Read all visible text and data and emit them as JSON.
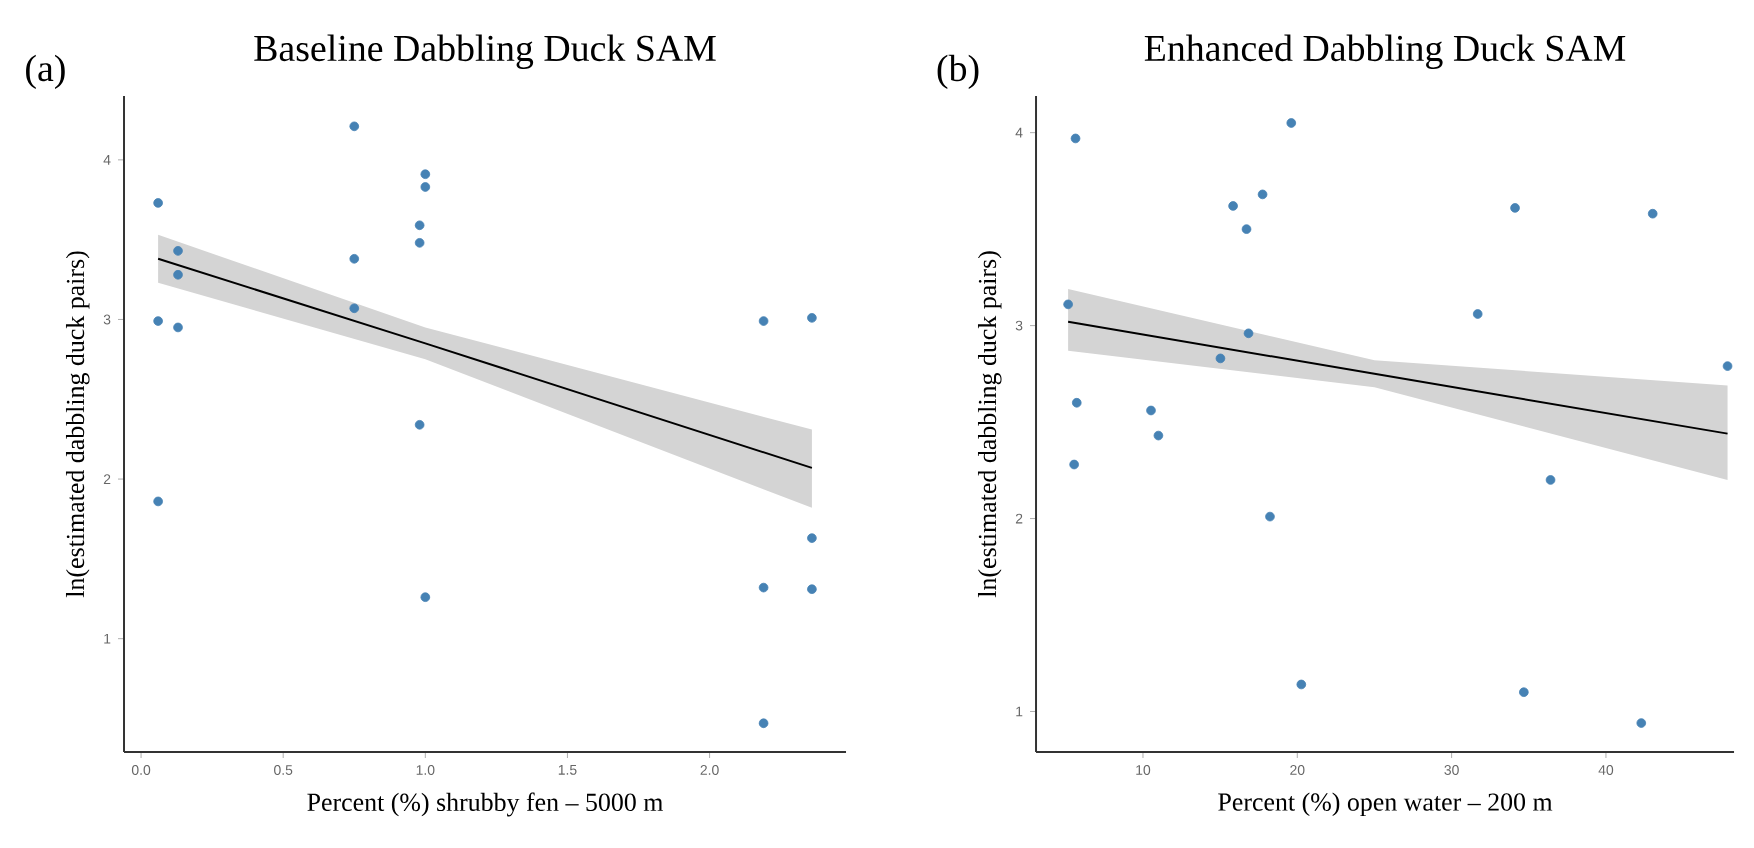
{
  "chart_data": [
    {
      "type": "scatter",
      "title": "Baseline Dabbling Duck SAM",
      "xlabel": "Percent (%) shrubby fen – 5000 m",
      "ylabel": "ln(estimated dabbling duck pairs)",
      "annotations": [
        "(a)"
      ],
      "xlim": [
        -0.06,
        2.48
      ],
      "ylim": [
        0.29,
        4.4
      ],
      "xticks": [
        {
          "value": 0,
          "label": "0.0"
        },
        0.5,
        {
          "value": 1,
          "label": "1.0"
        },
        1.5,
        {
          "value": 2,
          "label": "2.0"
        }
      ],
      "yticks": [
        1,
        2,
        3,
        4
      ],
      "series": [
        {
          "marker": "circle",
          "color": "#4682b4",
          "x": [
            0.06,
            0.06,
            0.06,
            0.13,
            0.13,
            0.13,
            0.75,
            0.75,
            0.75,
            0.98,
            0.98,
            0.98,
            1.0,
            1.0,
            1.0,
            2.19,
            2.19,
            2.19,
            2.36,
            2.36,
            2.36
          ],
          "values": [
            3.73,
            2.99,
            1.86,
            3.43,
            3.28,
            2.95,
            4.21,
            3.38,
            3.07,
            3.59,
            3.48,
            2.34,
            3.91,
            3.83,
            1.26,
            2.99,
            1.32,
            0.47,
            3.01,
            1.63,
            1.31
          ]
        },
        {
          "type": "line",
          "color": "#000000",
          "marker": "none",
          "x": [
            0.06,
            1.0,
            2.36
          ],
          "values": [
            3.38,
            2.85,
            2.07
          ],
          "lower": [
            3.23,
            2.75,
            1.82
          ],
          "upper": [
            3.53,
            2.95,
            2.31
          ]
        }
      ]
    },
    {
      "type": "scatter",
      "title": "Enhanced Dabbling Duck SAM",
      "xlabel": "Percent (%) open water – 200 m",
      "ylabel": "ln(estimated dabbling duck pairs)",
      "annotations": [
        "(b)"
      ],
      "xlim": [
        3.07,
        48.3
      ],
      "ylim": [
        0.79,
        4.19
      ],
      "xticks": [
        10,
        20,
        30,
        40
      ],
      "yticks": [
        1,
        2,
        3,
        4
      ],
      "series": [
        {
          "marker": "circle",
          "color": "#4682b4",
          "x": [
            5.15,
            5.63,
            5.71,
            5.54,
            10.52,
            11.0,
            15.02,
            15.84,
            16.71,
            16.84,
            17.75,
            18.23,
            19.61,
            20.26,
            31.69,
            34.11,
            34.68,
            36.41,
            42.29,
            43.03,
            47.88
          ],
          "values": [
            3.11,
            3.97,
            2.6,
            2.28,
            2.56,
            2.43,
            2.83,
            3.62,
            3.5,
            2.96,
            3.68,
            2.01,
            4.05,
            1.14,
            3.06,
            3.61,
            1.1,
            2.2,
            0.94,
            3.58,
            2.79
          ]
        },
        {
          "type": "line",
          "color": "#000000",
          "marker": "none",
          "x": [
            5.15,
            25.0,
            47.88
          ],
          "values": [
            3.02,
            2.75,
            2.44
          ],
          "lower": [
            2.87,
            2.68,
            2.2
          ],
          "upper": [
            3.19,
            2.82,
            2.69
          ]
        }
      ]
    }
  ]
}
